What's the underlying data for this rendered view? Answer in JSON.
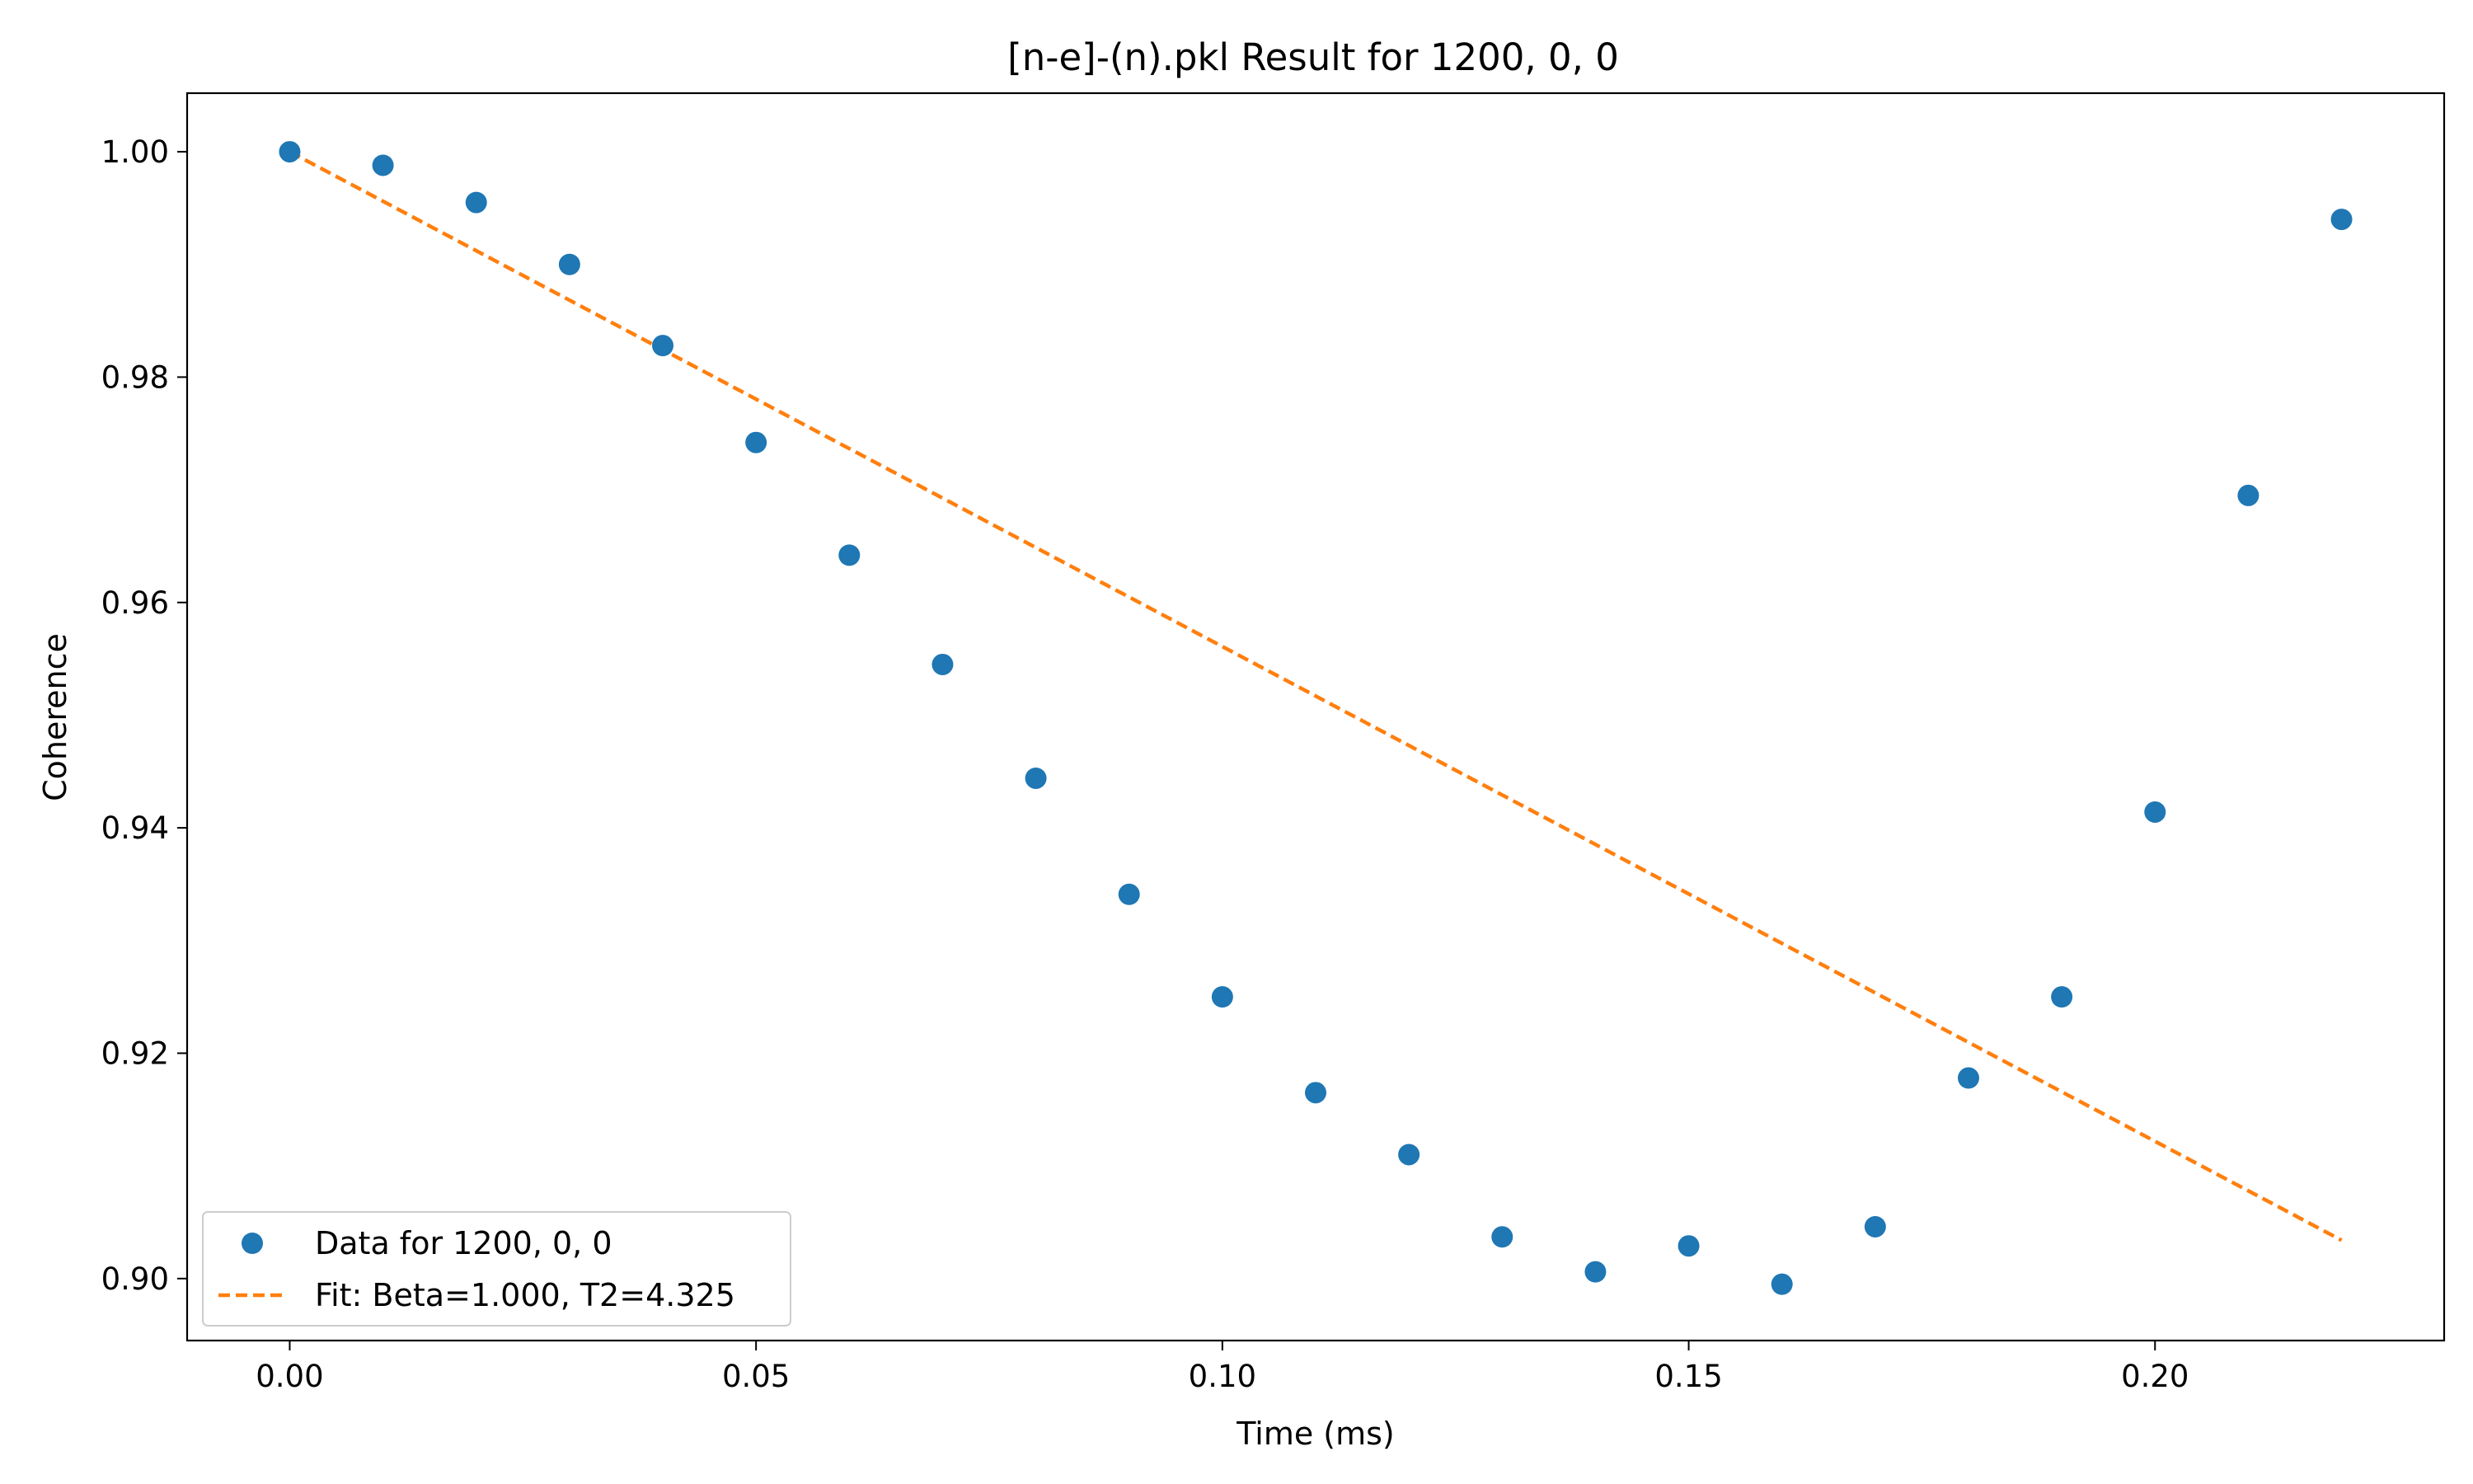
{
  "chart_data": {
    "type": "scatter",
    "title": "[n-e]-(n).pkl Result for 1200, 0, 0",
    "xlabel": "Time (ms)",
    "ylabel": "Coherence",
    "xlim": [
      -0.011,
      0.231
    ],
    "ylim": [
      0.8945,
      1.0052
    ],
    "xticks": [
      0.0,
      0.05,
      0.1,
      0.15,
      0.2
    ],
    "xtick_labels": [
      "0.00",
      "0.05",
      "0.10",
      "0.15",
      "0.20"
    ],
    "yticks": [
      0.9,
      0.92,
      0.94,
      0.96,
      0.98,
      1.0
    ],
    "ytick_labels": [
      "0.90",
      "0.92",
      "0.94",
      "0.96",
      "0.98",
      "1.00"
    ],
    "grid": false,
    "legend_position": "lower-left",
    "series": [
      {
        "name": "Data for 1200, 0, 0",
        "kind": "scatter",
        "color": "#1f77b4",
        "x": [
          0.0,
          0.01,
          0.02,
          0.03,
          0.04,
          0.05,
          0.06,
          0.07,
          0.08,
          0.09,
          0.1,
          0.11,
          0.12,
          0.13,
          0.14,
          0.15,
          0.16,
          0.17,
          0.18,
          0.19,
          0.2,
          0.21,
          0.22
        ],
        "y": [
          1.0,
          0.9988,
          0.9955,
          0.99,
          0.9828,
          0.9742,
          0.9642,
          0.9545,
          0.9444,
          0.9341,
          0.925,
          0.9165,
          0.911,
          0.9037,
          0.9006,
          0.9029,
          0.8995,
          0.9046,
          0.9178,
          0.925,
          0.9414,
          0.9695,
          0.994
        ]
      },
      {
        "name": "Fit: Beta=1.000, T2=4.325",
        "kind": "line",
        "style": "dashed",
        "color": "#ff7f0e",
        "x": [
          0.0,
          0.22
        ],
        "y": [
          1.0,
          0.9034
        ]
      }
    ]
  }
}
